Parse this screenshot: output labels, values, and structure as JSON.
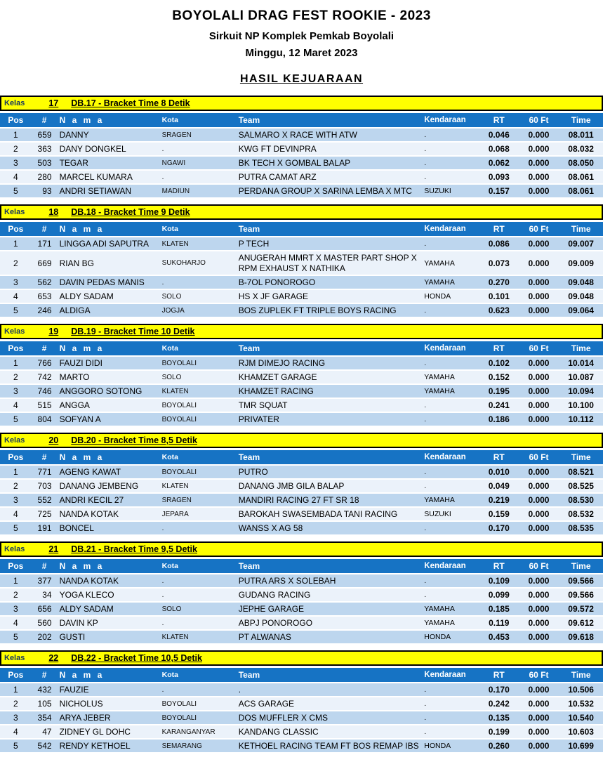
{
  "header": {
    "title": "BOYOLALI DRAG FEST ROOKIE - 2023",
    "subtitle": "Sirkuit NP Komplek Pemkab Boyolali",
    "date": "Minggu, 12 Maret 2023",
    "result_title": "HASIL KEJUARAAN"
  },
  "labels": {
    "kelas": "Kelas"
  },
  "columns": {
    "pos": "Pos",
    "num": "#",
    "nama": "N a m a",
    "kota": "Kota",
    "team": "Team",
    "kendaraan": "Kendaraan",
    "rt": "RT",
    "sixty": "60 Ft",
    "time": "Time"
  },
  "colors": {
    "section_bar_bg": "#ffff00",
    "section_bar_border": "#000000",
    "kelas_label_text": "#17375e",
    "table_header_bg": "#1673c4",
    "table_header_text": "#ffffff",
    "row_odd_bg": "#bdd6ee",
    "row_even_bg": "#ebf2fa"
  },
  "sections": [
    {
      "kelas": "17",
      "title": "DB.17 - Bracket Time 8 Detik",
      "rows": [
        {
          "pos": "1",
          "num": "659",
          "nama": "DANNY",
          "kota": "SRAGEN",
          "team": "SALMARO X RACE WITH ATW",
          "kendaraan": ".",
          "rt": "0.046",
          "sixty": "0.000",
          "time": "08.011"
        },
        {
          "pos": "2",
          "num": "363",
          "nama": "DANY DONGKEL",
          "kota": ".",
          "team": "KWG FT DEVINPRA",
          "kendaraan": ".",
          "rt": "0.068",
          "sixty": "0.000",
          "time": "08.032"
        },
        {
          "pos": "3",
          "num": "503",
          "nama": "TEGAR",
          "kota": "NGAWI",
          "team": "BK TECH X GOMBAL BALAP",
          "kendaraan": ".",
          "rt": "0.062",
          "sixty": "0.000",
          "time": "08.050"
        },
        {
          "pos": "4",
          "num": "280",
          "nama": "MARCEL KUMARA",
          "kota": ".",
          "team": "PUTRA CAMAT ARZ",
          "kendaraan": ".",
          "rt": "0.093",
          "sixty": "0.000",
          "time": "08.061"
        },
        {
          "pos": "5",
          "num": "93",
          "nama": "ANDRI SETIAWAN",
          "kota": "MADIUN",
          "team": "PERDANA GROUP X SARINA LEMBA X MTC",
          "kendaraan": "SUZUKI",
          "rt": "0.157",
          "sixty": "0.000",
          "time": "08.061"
        }
      ]
    },
    {
      "kelas": "18",
      "title": "DB.18 - Bracket Time 9 Detik",
      "rows": [
        {
          "pos": "1",
          "num": "171",
          "nama": "LINGGA ADI SAPUTRA",
          "kota": "KLATEN",
          "team": "P TECH",
          "kendaraan": ".",
          "rt": "0.086",
          "sixty": "0.000",
          "time": "09.007"
        },
        {
          "pos": "2",
          "num": "669",
          "nama": "RIAN BG",
          "kota": "SUKOHARJO",
          "team": "ANUGERAH MMRT X MASTER PART SHOP X RPM EXHAUST X NATHIKA",
          "kendaraan": "YAMAHA",
          "rt": "0.073",
          "sixty": "0.000",
          "time": "09.009"
        },
        {
          "pos": "3",
          "num": "562",
          "nama": "DAVIN PEDAS MANIS",
          "kota": ".",
          "team": "B-7OL PONOROGO",
          "kendaraan": "YAMAHA",
          "rt": "0.270",
          "sixty": "0.000",
          "time": "09.048"
        },
        {
          "pos": "4",
          "num": "653",
          "nama": "ALDY SADAM",
          "kota": "SOLO",
          "team": "HS X JF GARAGE",
          "kendaraan": "HONDA",
          "rt": "0.101",
          "sixty": "0.000",
          "time": "09.048"
        },
        {
          "pos": "5",
          "num": "246",
          "nama": "ALDIGA",
          "kota": "JOGJA",
          "team": "BOS ZUPLEK FT TRIPLE BOYS RACING",
          "kendaraan": ".",
          "rt": "0.623",
          "sixty": "0.000",
          "time": "09.064"
        }
      ]
    },
    {
      "kelas": "19",
      "title": "DB.19 - Bracket Time 10 Detik",
      "rows": [
        {
          "pos": "1",
          "num": "766",
          "nama": "FAUZI DIDI",
          "kota": "BOYOLALI",
          "team": "RJM DIMEJO RACING",
          "kendaraan": ".",
          "rt": "0.102",
          "sixty": "0.000",
          "time": "10.014"
        },
        {
          "pos": "2",
          "num": "742",
          "nama": "MARTO",
          "kota": "SOLO",
          "team": "KHAMZET GARAGE",
          "kendaraan": "YAMAHA",
          "rt": "0.152",
          "sixty": "0.000",
          "time": "10.087"
        },
        {
          "pos": "3",
          "num": "746",
          "nama": "ANGGORO SOTONG",
          "kota": "KLATEN",
          "team": "KHAMZET RACING",
          "kendaraan": "YAMAHA",
          "rt": "0.195",
          "sixty": "0.000",
          "time": "10.094"
        },
        {
          "pos": "4",
          "num": "515",
          "nama": "ANGGA",
          "kota": "BOYOLALI",
          "team": "TMR SQUAT",
          "kendaraan": ".",
          "rt": "0.241",
          "sixty": "0.000",
          "time": "10.100"
        },
        {
          "pos": "5",
          "num": "804",
          "nama": "SOFYAN A",
          "kota": "BOYOLALI",
          "team": "PRIVATER",
          "kendaraan": ".",
          "rt": "0.186",
          "sixty": "0.000",
          "time": "10.112"
        }
      ]
    },
    {
      "kelas": "20",
      "title": "DB.20 - Bracket Time 8,5 Detik",
      "rows": [
        {
          "pos": "1",
          "num": "771",
          "nama": "AGENG KAWAT",
          "kota": "BOYOLALI",
          "team": "PUTRO",
          "kendaraan": ".",
          "rt": "0.010",
          "sixty": "0.000",
          "time": "08.521"
        },
        {
          "pos": "2",
          "num": "703",
          "nama": "DANANG JEMBENG",
          "kota": "KLATEN",
          "team": "DANANG JMB GILA BALAP",
          "kendaraan": ".",
          "rt": "0.049",
          "sixty": "0.000",
          "time": "08.525"
        },
        {
          "pos": "3",
          "num": "552",
          "nama": "ANDRI KECIL 27",
          "kota": "SRAGEN",
          "team": "MANDIRI RACING 27 FT SR 18",
          "kendaraan": "YAMAHA",
          "rt": "0.219",
          "sixty": "0.000",
          "time": "08.530"
        },
        {
          "pos": "4",
          "num": "725",
          "nama": "NANDA KOTAK",
          "kota": "JEPARA",
          "team": "BAROKAH SWASEMBADA TANI RACING",
          "kendaraan": "SUZUKI",
          "rt": "0.159",
          "sixty": "0.000",
          "time": "08.532"
        },
        {
          "pos": "5",
          "num": "191",
          "nama": "BONCEL",
          "kota": ".",
          "team": "WANSS X AG 58",
          "kendaraan": ".",
          "rt": "0.170",
          "sixty": "0.000",
          "time": "08.535"
        }
      ]
    },
    {
      "kelas": "21",
      "title": "DB.21 - Bracket Time 9,5 Detik",
      "rows": [
        {
          "pos": "1",
          "num": "377",
          "nama": "NANDA KOTAK",
          "kota": ".",
          "team": "PUTRA ARS X SOLEBAH",
          "kendaraan": ".",
          "rt": "0.109",
          "sixty": "0.000",
          "time": "09.566"
        },
        {
          "pos": "2",
          "num": "34",
          "nama": "YOGA KLECO",
          "kota": ".",
          "team": "GUDANG RACING",
          "kendaraan": ".",
          "rt": "0.099",
          "sixty": "0.000",
          "time": "09.566"
        },
        {
          "pos": "3",
          "num": "656",
          "nama": "ALDY SADAM",
          "kota": "SOLO",
          "team": "JEPHE GARAGE",
          "kendaraan": "YAMAHA",
          "rt": "0.185",
          "sixty": "0.000",
          "time": "09.572"
        },
        {
          "pos": "4",
          "num": "560",
          "nama": "DAVIN KP",
          "kota": ".",
          "team": "ABPJ PONOROGO",
          "kendaraan": "YAMAHA",
          "rt": "0.119",
          "sixty": "0.000",
          "time": "09.612"
        },
        {
          "pos": "5",
          "num": "202",
          "nama": "GUSTI",
          "kota": "KLATEN",
          "team": "PT ALWANAS",
          "kendaraan": "HONDA",
          "rt": "0.453",
          "sixty": "0.000",
          "time": "09.618"
        }
      ]
    },
    {
      "kelas": "22",
      "title": "DB.22 - Bracket Time 10,5 Detik",
      "rows": [
        {
          "pos": "1",
          "num": "432",
          "nama": "FAUZIE",
          "kota": ".",
          "team": ".",
          "kendaraan": ".",
          "rt": "0.170",
          "sixty": "0.000",
          "time": "10.506"
        },
        {
          "pos": "2",
          "num": "105",
          "nama": "NICHOLUS",
          "kota": "BOYOLALI",
          "team": "ACS GARAGE",
          "kendaraan": ".",
          "rt": "0.242",
          "sixty": "0.000",
          "time": "10.532"
        },
        {
          "pos": "3",
          "num": "354",
          "nama": "ARYA JEBER",
          "kota": "BOYOLALI",
          "team": "DOS MUFFLER X CMS",
          "kendaraan": ".",
          "rt": "0.135",
          "sixty": "0.000",
          "time": "10.540"
        },
        {
          "pos": "4",
          "num": "47",
          "nama": "ZIDNEY GL DOHC",
          "kota": "KARANGANYAR",
          "team": "KANDANG CLASSIC",
          "kendaraan": ".",
          "rt": "0.199",
          "sixty": "0.000",
          "time": "10.603"
        },
        {
          "pos": "5",
          "num": "542",
          "nama": "RENDY KETHOEL",
          "kota": "SEMARANG",
          "team": "KETHOEL RACING TEAM FT BOS REMAP IBS",
          "kendaraan": "HONDA",
          "rt": "0.260",
          "sixty": "0.000",
          "time": "10.699"
        }
      ]
    }
  ]
}
